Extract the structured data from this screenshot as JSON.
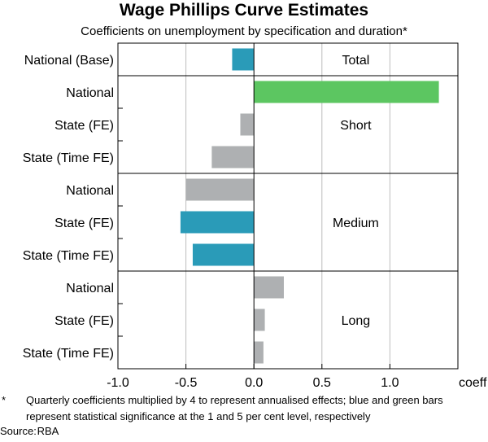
{
  "chart_data": {
    "type": "bar",
    "orientation": "horizontal",
    "title": "Wage Phillips Curve Estimates",
    "subtitle": "Coefficients on unemployment by specification and duration*",
    "xlabel": "coeff",
    "xlim": [
      -1.0,
      1.5
    ],
    "xticks": [
      -1.0,
      -0.5,
      0.0,
      0.5,
      1.0
    ],
    "xtick_labels": [
      "-1.0",
      "-0.5",
      "0.0",
      "0.5",
      "1.0"
    ],
    "grid": true,
    "groups": [
      {
        "name": "Total",
        "bars": [
          {
            "label": "National (Base)",
            "value": -0.16,
            "significance": "1 per cent"
          }
        ]
      },
      {
        "name": "Short",
        "bars": [
          {
            "label": "National",
            "value": 1.36,
            "significance": "5 per cent"
          },
          {
            "label": "State (FE)",
            "value": -0.1,
            "significance": "none"
          },
          {
            "label": "State (Time FE)",
            "value": -0.31,
            "significance": "none"
          }
        ]
      },
      {
        "name": "Medium",
        "bars": [
          {
            "label": "National",
            "value": -0.5,
            "significance": "none"
          },
          {
            "label": "State (FE)",
            "value": -0.54,
            "significance": "1 per cent"
          },
          {
            "label": "State (Time FE)",
            "value": -0.45,
            "significance": "1 per cent"
          }
        ]
      },
      {
        "name": "Long",
        "bars": [
          {
            "label": "National",
            "value": 0.22,
            "significance": "none"
          },
          {
            "label": "State (FE)",
            "value": 0.08,
            "significance": "none"
          },
          {
            "label": "State (Time FE)",
            "value": 0.07,
            "significance": "none"
          }
        ]
      }
    ]
  },
  "colors": {
    "significant_1pct": "#2a9bb8",
    "significant_5pct": "#5cc661",
    "not_significant": "#aeb0b2",
    "gridline": "#bdbdbd",
    "axis": "#000000"
  },
  "footnote": {
    "mark": "*",
    "text": "Quarterly coefficients multiplied by 4 to represent annualised effects; blue and green bars represent statistical significance at the 1 and 5 per cent level, respectively"
  },
  "source": {
    "label": "Source:",
    "value": "RBA"
  }
}
